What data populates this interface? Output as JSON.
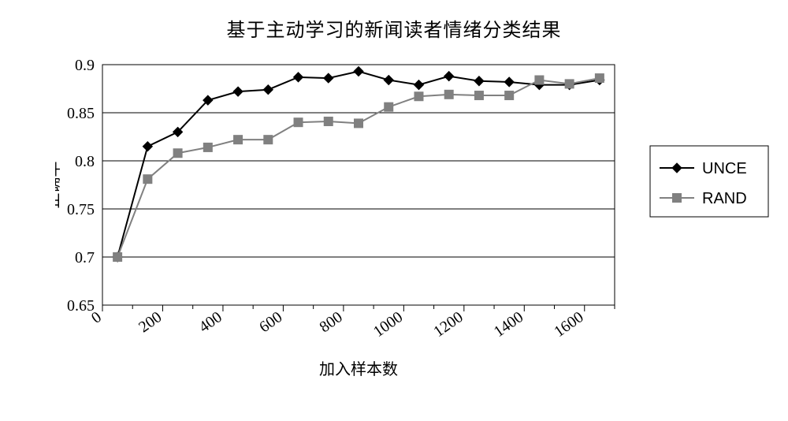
{
  "title": "基于主动学习的新闻读者情绪分类结果",
  "xlabel": "加入样本数",
  "ylabel": "正确率",
  "chart": {
    "type": "line",
    "background_color": "#ffffff",
    "plot_background": "#ffffff",
    "grid_color": "#000000",
    "grid_linewidth": 1,
    "axis_color": "#000000",
    "title_fontsize": 24,
    "label_fontsize": 20,
    "tick_fontsize": 20,
    "xlim": [
      0,
      1700
    ],
    "xticks": [
      0,
      200,
      400,
      600,
      800,
      1000,
      1200,
      1400,
      1600
    ],
    "xtick_labels": [
      "0",
      "200",
      "400",
      "600",
      "800",
      "1000",
      "1200",
      "1400",
      "1600"
    ],
    "xtick_rotation": -35,
    "ylim": [
      0.65,
      0.9
    ],
    "yticks": [
      0.65,
      0.7,
      0.75,
      0.8,
      0.85,
      0.9
    ],
    "ytick_labels": [
      "0.65",
      "0.7",
      "0.75",
      "0.8",
      "0.85",
      "0.9"
    ],
    "x_minor_step": 100,
    "minor_tick_len": 5,
    "major_tick_len": 8,
    "series": [
      {
        "name": "UNCE",
        "color": "#000000",
        "line_width": 2,
        "marker": "diamond",
        "marker_size": 12,
        "x": [
          50,
          150,
          250,
          350,
          450,
          550,
          650,
          750,
          850,
          950,
          1050,
          1150,
          1250,
          1350,
          1450,
          1550,
          1650
        ],
        "y": [
          0.7,
          0.815,
          0.83,
          0.863,
          0.872,
          0.874,
          0.887,
          0.886,
          0.893,
          0.884,
          0.879,
          0.888,
          0.883,
          0.882,
          0.879,
          0.879,
          0.884
        ]
      },
      {
        "name": "RAND",
        "color": "#808080",
        "line_width": 2,
        "marker": "square",
        "marker_size": 11,
        "x": [
          50,
          150,
          250,
          350,
          450,
          550,
          650,
          750,
          850,
          950,
          1050,
          1150,
          1250,
          1350,
          1450,
          1550,
          1650
        ],
        "y": [
          0.7,
          0.781,
          0.808,
          0.814,
          0.822,
          0.822,
          0.84,
          0.841,
          0.839,
          0.856,
          0.867,
          0.869,
          0.868,
          0.868,
          0.884,
          0.88,
          0.886
        ]
      }
    ],
    "legend": {
      "labels": [
        "UNCE",
        "RAND"
      ],
      "border_color": "#000000",
      "background": "#ffffff",
      "font_family": "Arial",
      "fontsize": 20
    }
  }
}
